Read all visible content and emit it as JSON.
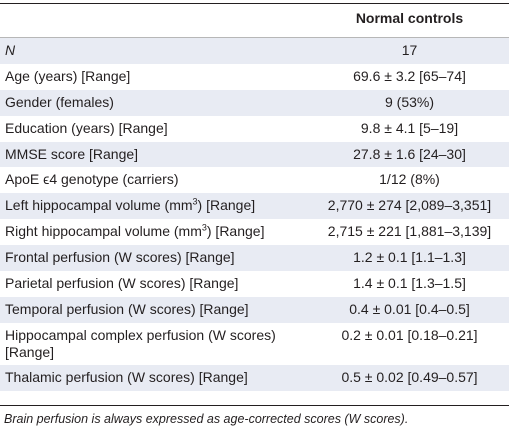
{
  "table": {
    "column_header": "Normal controls",
    "rows": [
      {
        "label": "N",
        "value": "17"
      },
      {
        "label": "Age (years) [Range]",
        "value": "69.6 ± 3.2 [65–74]"
      },
      {
        "label": "Gender (females)",
        "value": "9 (53%)"
      },
      {
        "label": "Education (years) [Range]",
        "value": "9.8 ± 4.1 [5–19]"
      },
      {
        "label": "MMSE score [Range]",
        "value": "27.8 ± 1.6 [24–30]"
      },
      {
        "label": "ApoE ϵ4 genotype (carriers)",
        "value": "1/12 (8%)"
      },
      {
        "label_prefix": "Left hippocampal volume (mm",
        "label_sup": "3",
        "label_suffix": ") [Range]",
        "value": "2,770 ± 274 [2,089–3,351]"
      },
      {
        "label_prefix": "Right hippocampal volume (mm",
        "label_sup": "3",
        "label_suffix": ") [Range]",
        "value": "2,715 ± 221 [1,881–3,139]"
      },
      {
        "label": "Frontal perfusion (W scores) [Range]",
        "value": "1.2 ± 0.1 [1.1–1.3]"
      },
      {
        "label": "Parietal perfusion (W scores) [Range]",
        "value": "1.4 ± 0.1 [1.3–1.5]"
      },
      {
        "label": "Temporal perfusion (W scores) [Range]",
        "value": "0.4 ± 0.01 [0.4–0.5]"
      },
      {
        "label_line1": "Hippocampal complex perfusion (W scores)",
        "label_line2": "[Range]",
        "value": "0.2 ± 0.01 [0.18–0.21]"
      },
      {
        "label": "Thalamic perfusion (W scores) [Range]",
        "value": "0.5 ± 0.02 [0.49–0.57]"
      }
    ]
  },
  "footnote": "Brain perfusion is always expressed as age-corrected scores (W scores)."
}
